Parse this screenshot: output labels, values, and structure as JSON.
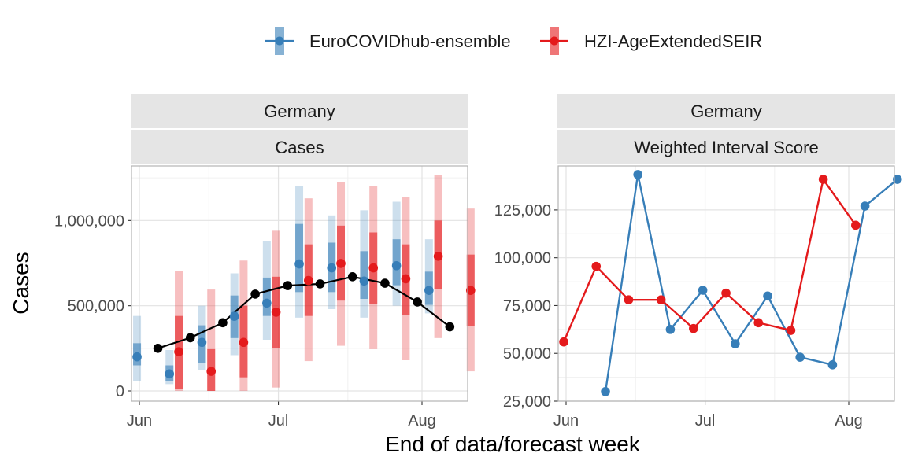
{
  "colors": {
    "ensemble": "#377eb8",
    "seir": "#e41a1c",
    "observed": "#000000",
    "strip_bg": "#e5e5e5",
    "grid": "#e3e3e3",
    "panel_border": "#b3b3b3"
  },
  "legend": {
    "position": "top",
    "items": [
      {
        "label": "EuroCOVIDhub-ensemble",
        "color": "#377eb8"
      },
      {
        "label": "HZI-AgeExtendedSEIR",
        "color": "#e41a1c"
      }
    ]
  },
  "axes": {
    "xlabel": "End of data/forecast week",
    "ylabel": "Cases",
    "x_ticks": [
      "Jun",
      "Jul",
      "Aug"
    ]
  },
  "panels": [
    {
      "strip_top": "Germany",
      "strip_bottom": "Cases",
      "y_ticks": [
        "0",
        "500,000",
        "1,000,000"
      ]
    },
    {
      "strip_top": "Germany",
      "strip_bottom": "Weighted Interval Score",
      "y_ticks": [
        "25,000",
        "50,000",
        "75,000",
        "100,000",
        "125,000"
      ]
    }
  ],
  "chart_data": [
    {
      "type": "line",
      "title": "Germany — Cases",
      "xlabel": "End of data/forecast week",
      "ylabel": "Cases",
      "x_tick_labels": [
        "Jun",
        "Jul",
        "Aug"
      ],
      "y_tick_values": [
        0,
        500000,
        1000000
      ],
      "ylim": [
        -60000,
        1320000
      ],
      "grid": true,
      "legend": "top",
      "x": [
        "2021-06-05",
        "2021-06-12",
        "2021-06-19",
        "2021-06-26",
        "2021-07-03",
        "2021-07-10",
        "2021-07-17",
        "2021-07-24",
        "2021-07-31",
        "2021-08-07"
      ],
      "observed": [
        250000,
        312000,
        400000,
        568000,
        618000,
        628000,
        670000,
        632000,
        522000,
        376000
      ],
      "series": [
        {
          "name": "EuroCOVIDhub-ensemble",
          "median": [
            200000,
            100000,
            285000,
            438000,
            515000,
            745000,
            722000,
            645000,
            735000,
            590000
          ],
          "q25": [
            150000,
            60000,
            165000,
            310000,
            440000,
            580000,
            580000,
            540000,
            620000,
            505000
          ],
          "q75": [
            280000,
            150000,
            385000,
            560000,
            665000,
            980000,
            870000,
            820000,
            890000,
            700000
          ],
          "q05": [
            60000,
            40000,
            120000,
            210000,
            300000,
            430000,
            480000,
            430000,
            500000,
            455000
          ],
          "q95": [
            440000,
            240000,
            500000,
            690000,
            880000,
            1200000,
            1030000,
            1060000,
            1110000,
            890000
          ]
        },
        {
          "name": "HZI-AgeExtendedSEIR",
          "median": [
            230000,
            115000,
            285000,
            462000,
            648000,
            748000,
            722000,
            658000,
            790000,
            590000
          ],
          "q25": [
            10000,
            0,
            80000,
            250000,
            440000,
            530000,
            510000,
            445000,
            600000,
            380000
          ],
          "q75": [
            440000,
            245000,
            500000,
            670000,
            860000,
            970000,
            930000,
            860000,
            1000000,
            800000
          ],
          "q05": [
            0,
            0,
            0,
            20000,
            175000,
            265000,
            245000,
            180000,
            310000,
            115000
          ],
          "q95": [
            705000,
            595000,
            765000,
            940000,
            1130000,
            1225000,
            1200000,
            1140000,
            1265000,
            1070000
          ]
        }
      ]
    },
    {
      "type": "line",
      "title": "Germany — Weighted Interval Score",
      "xlabel": "End of data/forecast week",
      "ylabel": "",
      "x_tick_labels": [
        "Jun",
        "Jul",
        "Aug"
      ],
      "y_tick_values": [
        25000,
        50000,
        75000,
        100000,
        125000
      ],
      "ylim": [
        25000,
        148000
      ],
      "grid": true,
      "legend": "top",
      "x": [
        "2021-06-05",
        "2021-06-12",
        "2021-06-19",
        "2021-06-26",
        "2021-07-03",
        "2021-07-10",
        "2021-07-17",
        "2021-07-24",
        "2021-07-31",
        "2021-08-07"
      ],
      "series": [
        {
          "name": "EuroCOVIDhub-ensemble",
          "values": [
            30000,
            143500,
            62500,
            83000,
            55000,
            80000,
            48000,
            44000,
            127000,
            141000
          ]
        },
        {
          "name": "HZI-AgeExtendedSEIR",
          "values": [
            56000,
            95500,
            78000,
            78000,
            63000,
            81500,
            66000,
            62000,
            141000,
            117000
          ]
        }
      ]
    }
  ]
}
